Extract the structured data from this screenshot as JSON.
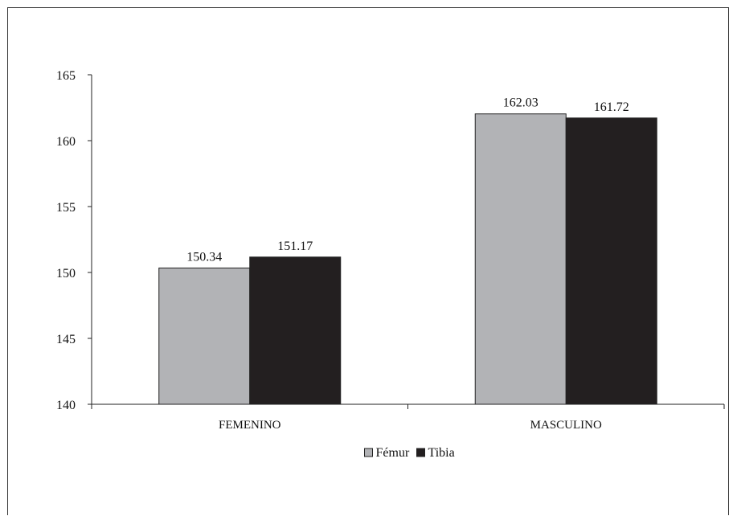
{
  "chart_data": {
    "type": "bar",
    "categories": [
      "FEMENINO",
      "MASCULINO"
    ],
    "series": [
      {
        "name": "Fémur",
        "values": [
          150.34,
          162.03
        ],
        "value_labels": [
          "150.34",
          "162.03"
        ],
        "color": "#b2b3b6"
      },
      {
        "name": "Tibia",
        "values": [
          151.17,
          161.72
        ],
        "value_labels": [
          "151.17",
          "161.72"
        ],
        "color": "#231f20"
      }
    ],
    "title": "",
    "xlabel": "",
    "ylabel": "",
    "ylim": [
      140,
      165
    ],
    "yticks": [
      "140",
      "145",
      "150",
      "155",
      "160",
      "165"
    ],
    "grid": false,
    "legend": "bottom-center"
  }
}
